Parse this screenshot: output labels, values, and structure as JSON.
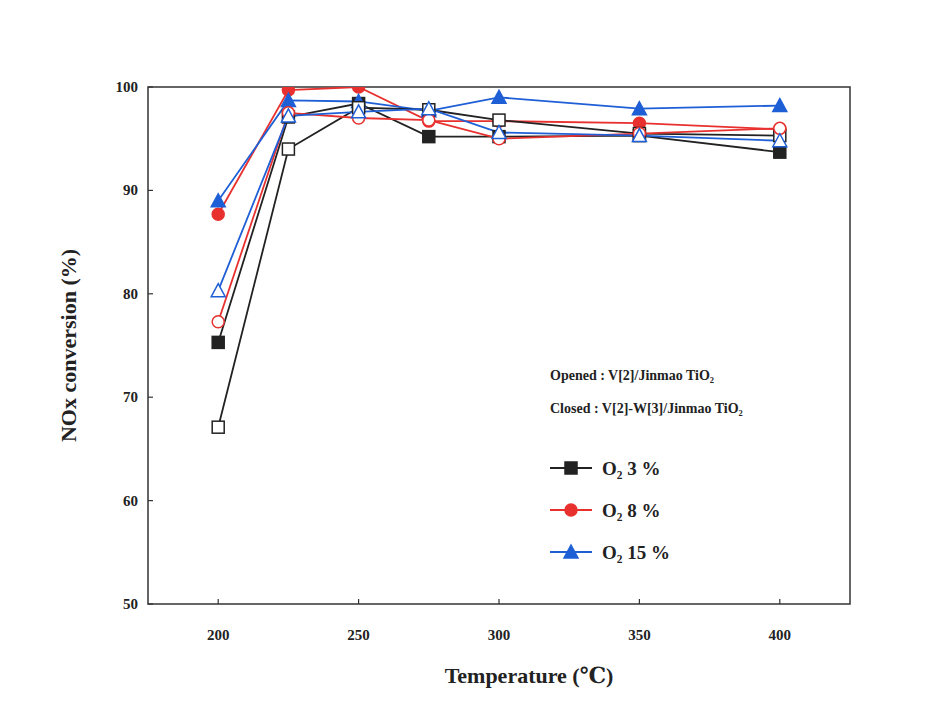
{
  "chart_data": {
    "type": "line",
    "x_label": "Temperature (℃)",
    "y_label": "NOx conversion (%)",
    "annotations": [
      "Opened : V[2]/Jinmao TiO₂",
      "Closed : V[2]-W[3]/Jinmao TiO₂"
    ],
    "x": [
      200,
      225,
      250,
      275,
      300,
      350,
      400
    ],
    "xlim": [
      175,
      425
    ],
    "xticks": [
      200,
      250,
      300,
      350,
      400
    ],
    "ylim": [
      50,
      100
    ],
    "yticks": [
      50,
      60,
      70,
      80,
      90,
      100
    ],
    "grid": false,
    "legend": "lower right",
    "series": [
      {
        "name": "O₂ 3 %",
        "color": "#222222",
        "marker": "filled-square",
        "values": [
          75.3,
          97.1,
          98.4,
          95.2,
          95.2,
          95.3,
          93.7
        ]
      },
      {
        "name": "O₂ 8 %",
        "color": "#e8312f",
        "marker": "filled-circle",
        "values": [
          87.7,
          99.7,
          100,
          96.7,
          96.7,
          96.5,
          95.9
        ]
      },
      {
        "name": "O₂ 15 %",
        "color": "#1f5fd6",
        "marker": "filled-triangle",
        "values": [
          89.0,
          98.7,
          98.6,
          97.7,
          99.0,
          97.9,
          98.2
        ]
      },
      {
        "name": "O₂ 3 %",
        "color": "#222222",
        "marker": "open-square",
        "values": [
          67.1,
          94.0,
          98.0,
          97.8,
          96.8,
          95.5,
          95.3
        ]
      },
      {
        "name": "O₂ 8 %",
        "color": "#e8312f",
        "marker": "open-circle",
        "values": [
          77.3,
          97.5,
          97.0,
          96.8,
          95.0,
          95.5,
          96.0
        ]
      },
      {
        "name": "O₂ 15 %",
        "color": "#1f5fd6",
        "marker": "open-triangle",
        "values": [
          80.3,
          97.2,
          97.6,
          97.9,
          95.6,
          95.3,
          94.8
        ]
      }
    ]
  }
}
